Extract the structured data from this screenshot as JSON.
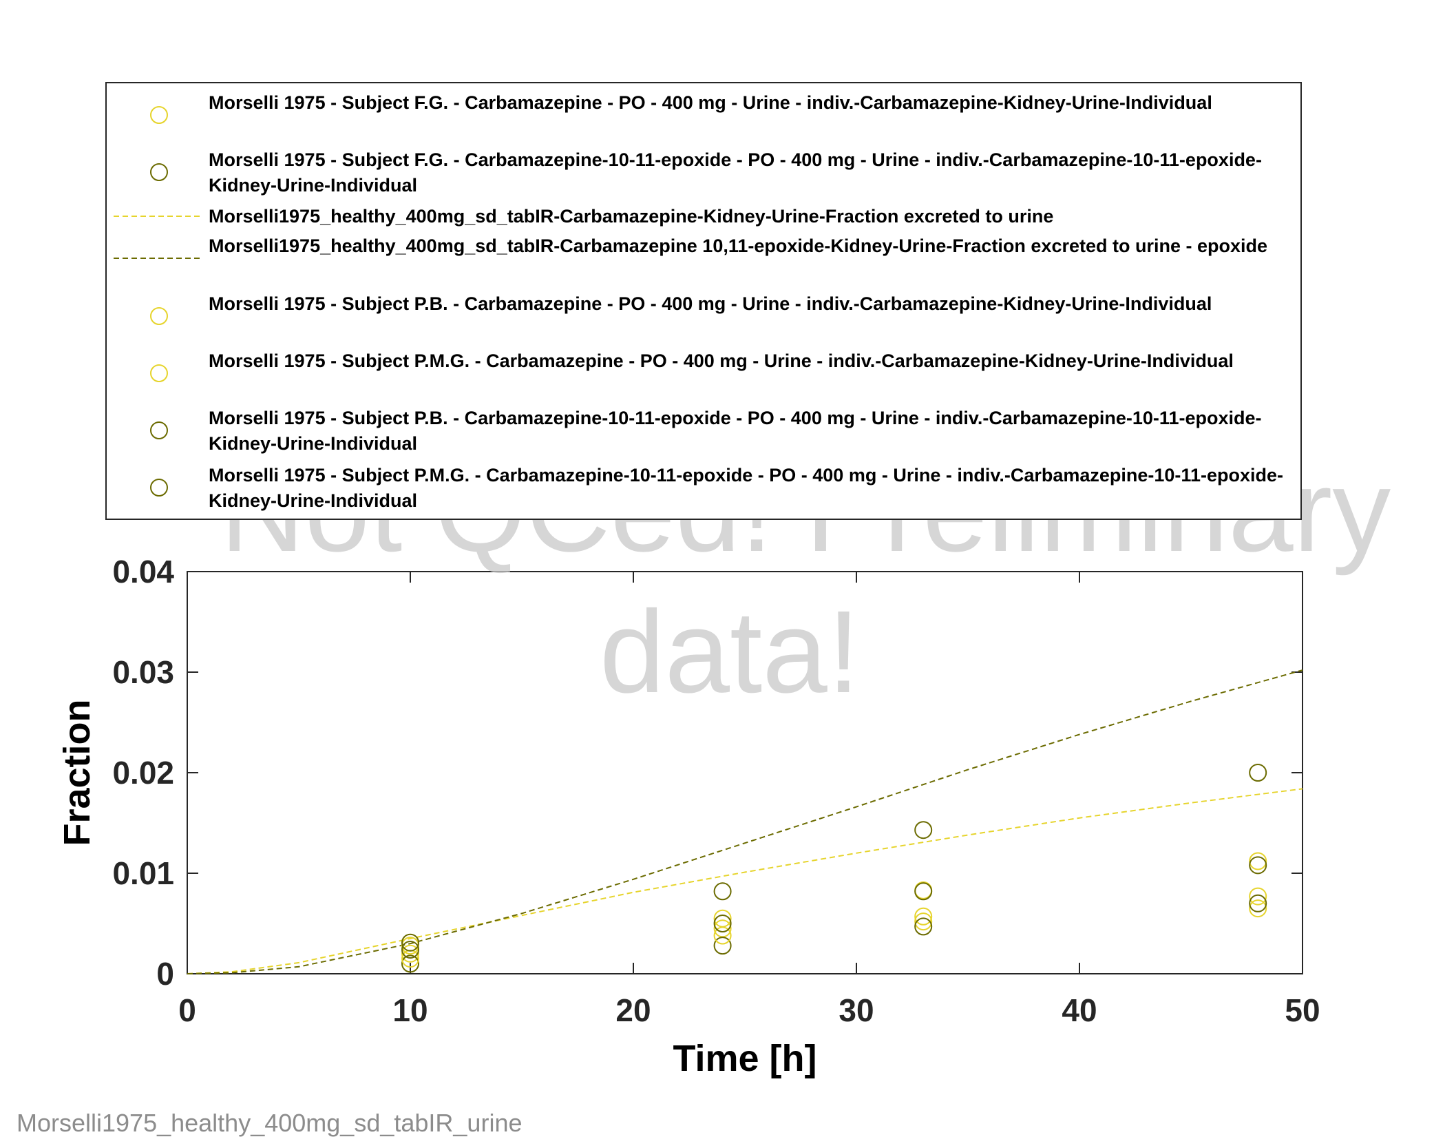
{
  "chart_data": {
    "type": "scatter",
    "title": "",
    "xlabel": "Time [h]",
    "ylabel": "Fraction",
    "xlim": [
      0,
      50
    ],
    "ylim": [
      0,
      0.04
    ],
    "xticks": [
      0,
      10,
      20,
      30,
      40,
      50
    ],
    "xtick_labels": [
      "0",
      "10",
      "20",
      "30",
      "40",
      "50"
    ],
    "yticks": [
      0,
      0.01,
      0.02,
      0.03,
      0.04
    ],
    "ytick_labels": [
      "0",
      "0.01",
      "0.02",
      "0.03",
      "0.04"
    ],
    "grid": false,
    "legend_position": "top",
    "series": [
      {
        "name": "Morselli 1975 - Subject F.G. - Carbamazepine - PO - 400 mg - Urine - indiv.-Carbamazepine-Kidney-Urine-Individual",
        "kind": "markers",
        "color": "#e6d42c",
        "x": [
          10,
          24,
          33,
          48
        ],
        "y": [
          0.002,
          0.0045,
          0.0057,
          0.0112
        ]
      },
      {
        "name": "Morselli 1975 - Subject F.G. - Carbamazepine-10-11-epoxide - PO - 400 mg - Urine - indiv.-Carbamazepine-10-11-epoxide-Kidney-Urine-Individual",
        "kind": "markers",
        "color": "#6b6b00",
        "x": [
          10,
          24,
          33,
          48
        ],
        "y": [
          0.001,
          0.0028,
          0.0143,
          0.02
        ]
      },
      {
        "name": "Morselli1975_healthy_400mg_sd_tabIR-Carbamazepine-Kidney-Urine-Fraction excreted to urine",
        "kind": "dashed-line",
        "color": "#e6d42c",
        "x": [
          0,
          2,
          5,
          10,
          15,
          20,
          25,
          30,
          35,
          40,
          45,
          50
        ],
        "y": [
          0,
          0.0002,
          0.0011,
          0.0035,
          0.0058,
          0.0081,
          0.0101,
          0.012,
          0.0138,
          0.0155,
          0.017,
          0.0184
        ]
      },
      {
        "name": "Morselli1975_healthy_400mg_sd_tabIR-Carbamazepine 10,11-epoxide-Kidney-Urine-Fraction excreted to urine - epoxide",
        "kind": "dashed-line",
        "color": "#6b6b00",
        "x": [
          0,
          2,
          5,
          10,
          15,
          20,
          25,
          30,
          35,
          40,
          45,
          50
        ],
        "y": [
          0,
          0.0001,
          0.0007,
          0.003,
          0.006,
          0.0094,
          0.013,
          0.0166,
          0.0203,
          0.0238,
          0.0271,
          0.0302
        ]
      },
      {
        "name": "Morselli 1975 - Subject P.B. - Carbamazepine - PO - 400 mg - Urine - indiv.-Carbamazepine-Kidney-Urine-Individual",
        "kind": "markers",
        "color": "#e6d42c",
        "x": [
          10,
          24,
          33,
          48
        ],
        "y": [
          0.0028,
          0.0055,
          0.0083,
          0.0077
        ]
      },
      {
        "name": "Morselli 1975 - Subject P.M.G. - Carbamazepine - PO - 400 mg - Urine - indiv.-Carbamazepine-Kidney-Urine-Individual",
        "kind": "markers",
        "color": "#e6d42c",
        "x": [
          10,
          24,
          33,
          48
        ],
        "y": [
          0.0015,
          0.0038,
          0.0052,
          0.0065
        ]
      },
      {
        "name": "Morselli 1975 - Subject P.B. - Carbamazepine-10-11-epoxide - PO - 400 mg - Urine - indiv.-Carbamazepine-10-11-epoxide-Kidney-Urine-Individual",
        "kind": "markers",
        "color": "#6b6b00",
        "x": [
          10,
          24,
          33,
          48
        ],
        "y": [
          0.0031,
          0.0082,
          0.0082,
          0.0108
        ]
      },
      {
        "name": "Morselli 1975 - Subject P.M.G. - Carbamazepine-10-11-epoxide - PO - 400 mg - Urine - indiv.-Carbamazepine-10-11-epoxide-Kidney-Urine-Individual",
        "kind": "markers",
        "color": "#6b6b00",
        "x": [
          10,
          24,
          33,
          48
        ],
        "y": [
          0.0024,
          0.005,
          0.0047,
          0.007
        ]
      }
    ]
  },
  "watermark": {
    "line1": "Not QCed! Preliminary",
    "line2": "data!"
  },
  "footer": {
    "caption": "Morselli1975_healthy_400mg_sd_tabIR_urine"
  }
}
